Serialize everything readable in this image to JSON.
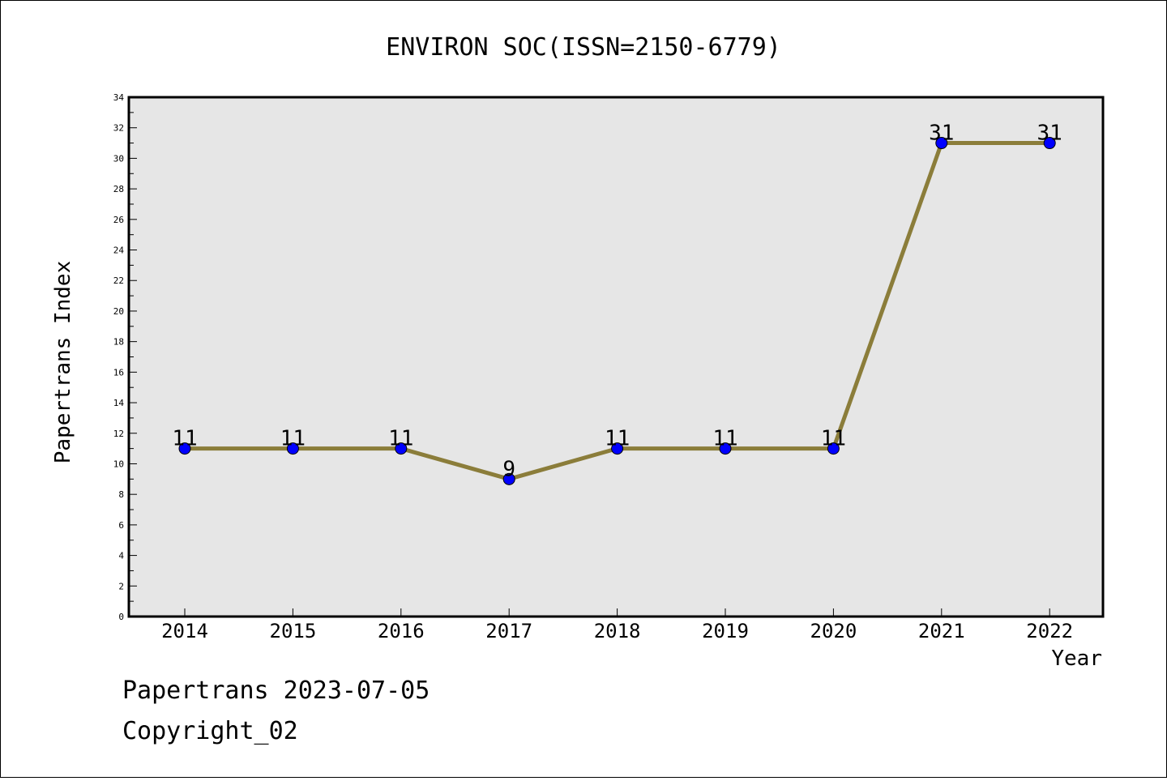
{
  "chart_data": {
    "type": "line",
    "title": "ENVIRON SOC(ISSN=2150-6779)",
    "xlabel": "Year",
    "ylabel": "Papertrans Index",
    "categories": [
      "2014",
      "2015",
      "2016",
      "2017",
      "2018",
      "2019",
      "2020",
      "2021",
      "2022"
    ],
    "series": [
      {
        "values": [
          11,
          11,
          11,
          9,
          11,
          11,
          11,
          31,
          31
        ]
      }
    ],
    "ylim": [
      0,
      34
    ],
    "yticks": [
      0,
      2,
      4,
      6,
      8,
      10,
      12,
      14,
      16,
      18,
      20,
      22,
      24,
      26,
      28,
      30,
      32,
      34
    ],
    "data_labels": true,
    "grid": false,
    "colors": {
      "line": "#8B7D3A",
      "marker": "#0000FF",
      "plot_background": "#E6E6E6"
    }
  },
  "footer": {
    "date_line": "Papertrans 2023-07-05",
    "copyright_line": "Copyright_02"
  }
}
